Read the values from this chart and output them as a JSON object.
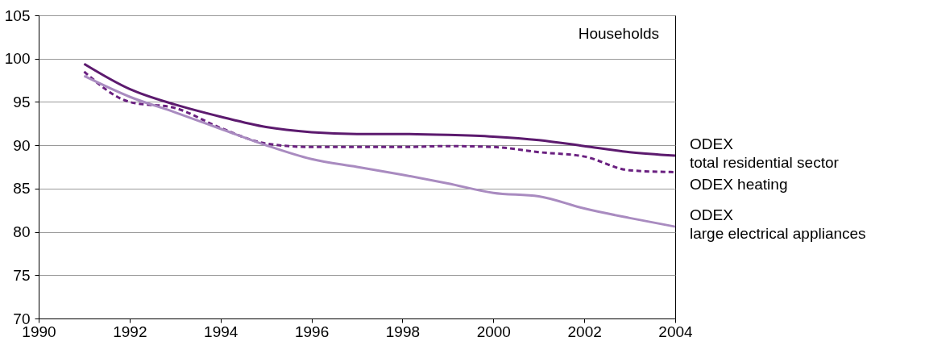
{
  "chart_data": {
    "type": "line",
    "annotations": [
      "Households"
    ],
    "x": [
      1991,
      1992,
      1993,
      1994,
      1995,
      1996,
      1997,
      1998,
      1999,
      2000,
      2001,
      2002,
      2003,
      2004
    ],
    "series": [
      {
        "name": "ODEX\ntotal residential sector",
        "color": "#5c1a6e",
        "line_style": "solid",
        "values": [
          99.4,
          96.5,
          94.7,
          93.3,
          92.1,
          91.5,
          91.3,
          91.3,
          91.2,
          91.0,
          90.6,
          89.9,
          89.2,
          88.8
        ]
      },
      {
        "name": "ODEX heating",
        "color": "#6a2080",
        "line_style": "dashed",
        "values": [
          98.5,
          95.0,
          94.3,
          92.0,
          90.2,
          89.8,
          89.8,
          89.8,
          89.9,
          89.8,
          89.2,
          88.7,
          87.1,
          86.9
        ]
      },
      {
        "name": "ODEX\nlarge electrical appliances",
        "color": "#a98bc0",
        "line_style": "solid",
        "values": [
          98.0,
          95.6,
          93.8,
          91.9,
          90.0,
          88.4,
          87.5,
          86.6,
          85.6,
          84.5,
          84.1,
          82.7,
          81.6,
          80.6
        ]
      }
    ],
    "xlim": [
      1990,
      2004
    ],
    "xticks": [
      1990,
      1992,
      1994,
      1996,
      1998,
      2000,
      2002,
      2004
    ],
    "ylim": [
      70,
      105
    ],
    "yticks": [
      70,
      75,
      80,
      85,
      90,
      95,
      100,
      105
    ],
    "grid": "y",
    "marker": "none"
  }
}
